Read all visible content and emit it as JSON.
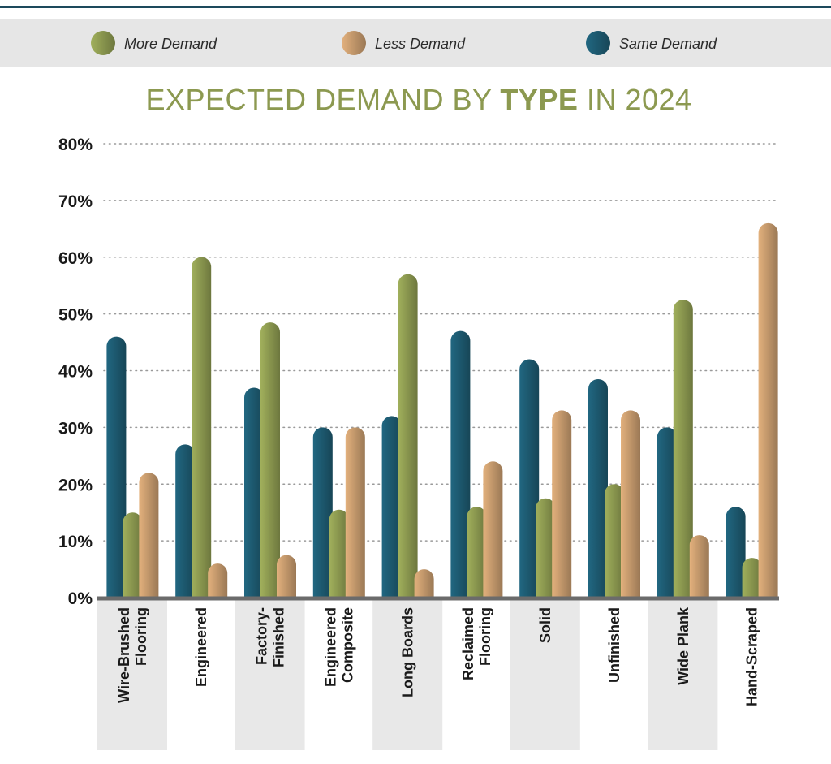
{
  "chart_data": {
    "type": "bar",
    "title_parts": [
      "EXPECTED DEMAND BY ",
      "TYPE",
      " IN 2024"
    ],
    "categories": [
      [
        "Wire-Brushed",
        "Flooring"
      ],
      [
        "Engineered"
      ],
      [
        "Factory-",
        "Finished"
      ],
      [
        "Engineered",
        "Composite"
      ],
      [
        "Long Boards"
      ],
      [
        "Reclaimed",
        "Flooring"
      ],
      [
        "Solid"
      ],
      [
        "Unfinished"
      ],
      [
        "Wide Plank"
      ],
      [
        "Hand-Scraped"
      ]
    ],
    "series": [
      {
        "name": "Same Demand",
        "color": "#1d5a70",
        "values": [
          46,
          27,
          37,
          30,
          32,
          47,
          42,
          38.5,
          30,
          16
        ]
      },
      {
        "name": "More Demand",
        "color": "#8c9950",
        "values": [
          15,
          60,
          48.5,
          15.5,
          57,
          16,
          17.5,
          20,
          52.5,
          7
        ]
      },
      {
        "name": "Less Demand",
        "color": "#c59a6d",
        "values": [
          22,
          6,
          7.5,
          30,
          5,
          24,
          33,
          33,
          11,
          66
        ]
      }
    ],
    "legend_order": [
      "More Demand",
      "Less Demand",
      "Same Demand"
    ],
    "ylim": [
      0,
      80
    ],
    "yticks": [
      "0%",
      "10%",
      "20%",
      "30%",
      "40%",
      "50%",
      "60%",
      "70%",
      "80%"
    ],
    "grid": true,
    "legend_position": "top"
  }
}
